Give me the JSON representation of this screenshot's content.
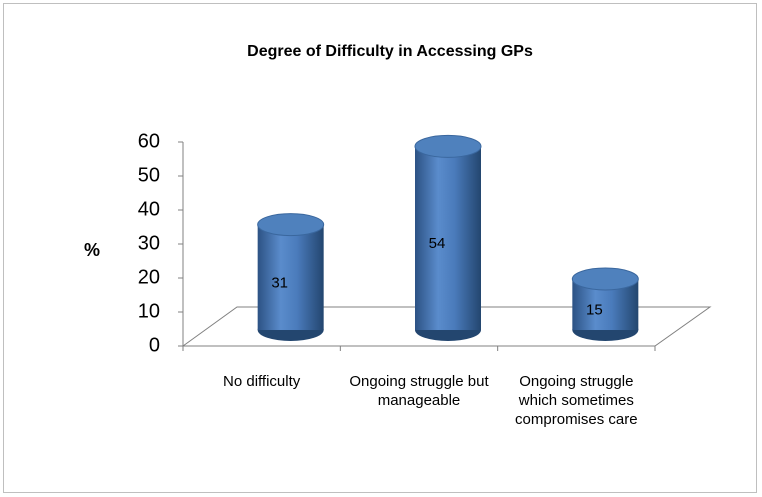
{
  "chart_data": {
    "type": "bar",
    "title": "Degree of Difficulty in Accessing GPs",
    "y_label": "%",
    "categories": [
      "No difficulty",
      "Ongoing struggle but manageable",
      "Ongoing struggle which sometimes compromises care"
    ],
    "values": [
      31,
      54,
      15
    ],
    "color": "#4f81bd",
    "ylim": [
      0,
      60
    ],
    "yticks": [
      0,
      10,
      20,
      30,
      40,
      50,
      60
    ]
  }
}
